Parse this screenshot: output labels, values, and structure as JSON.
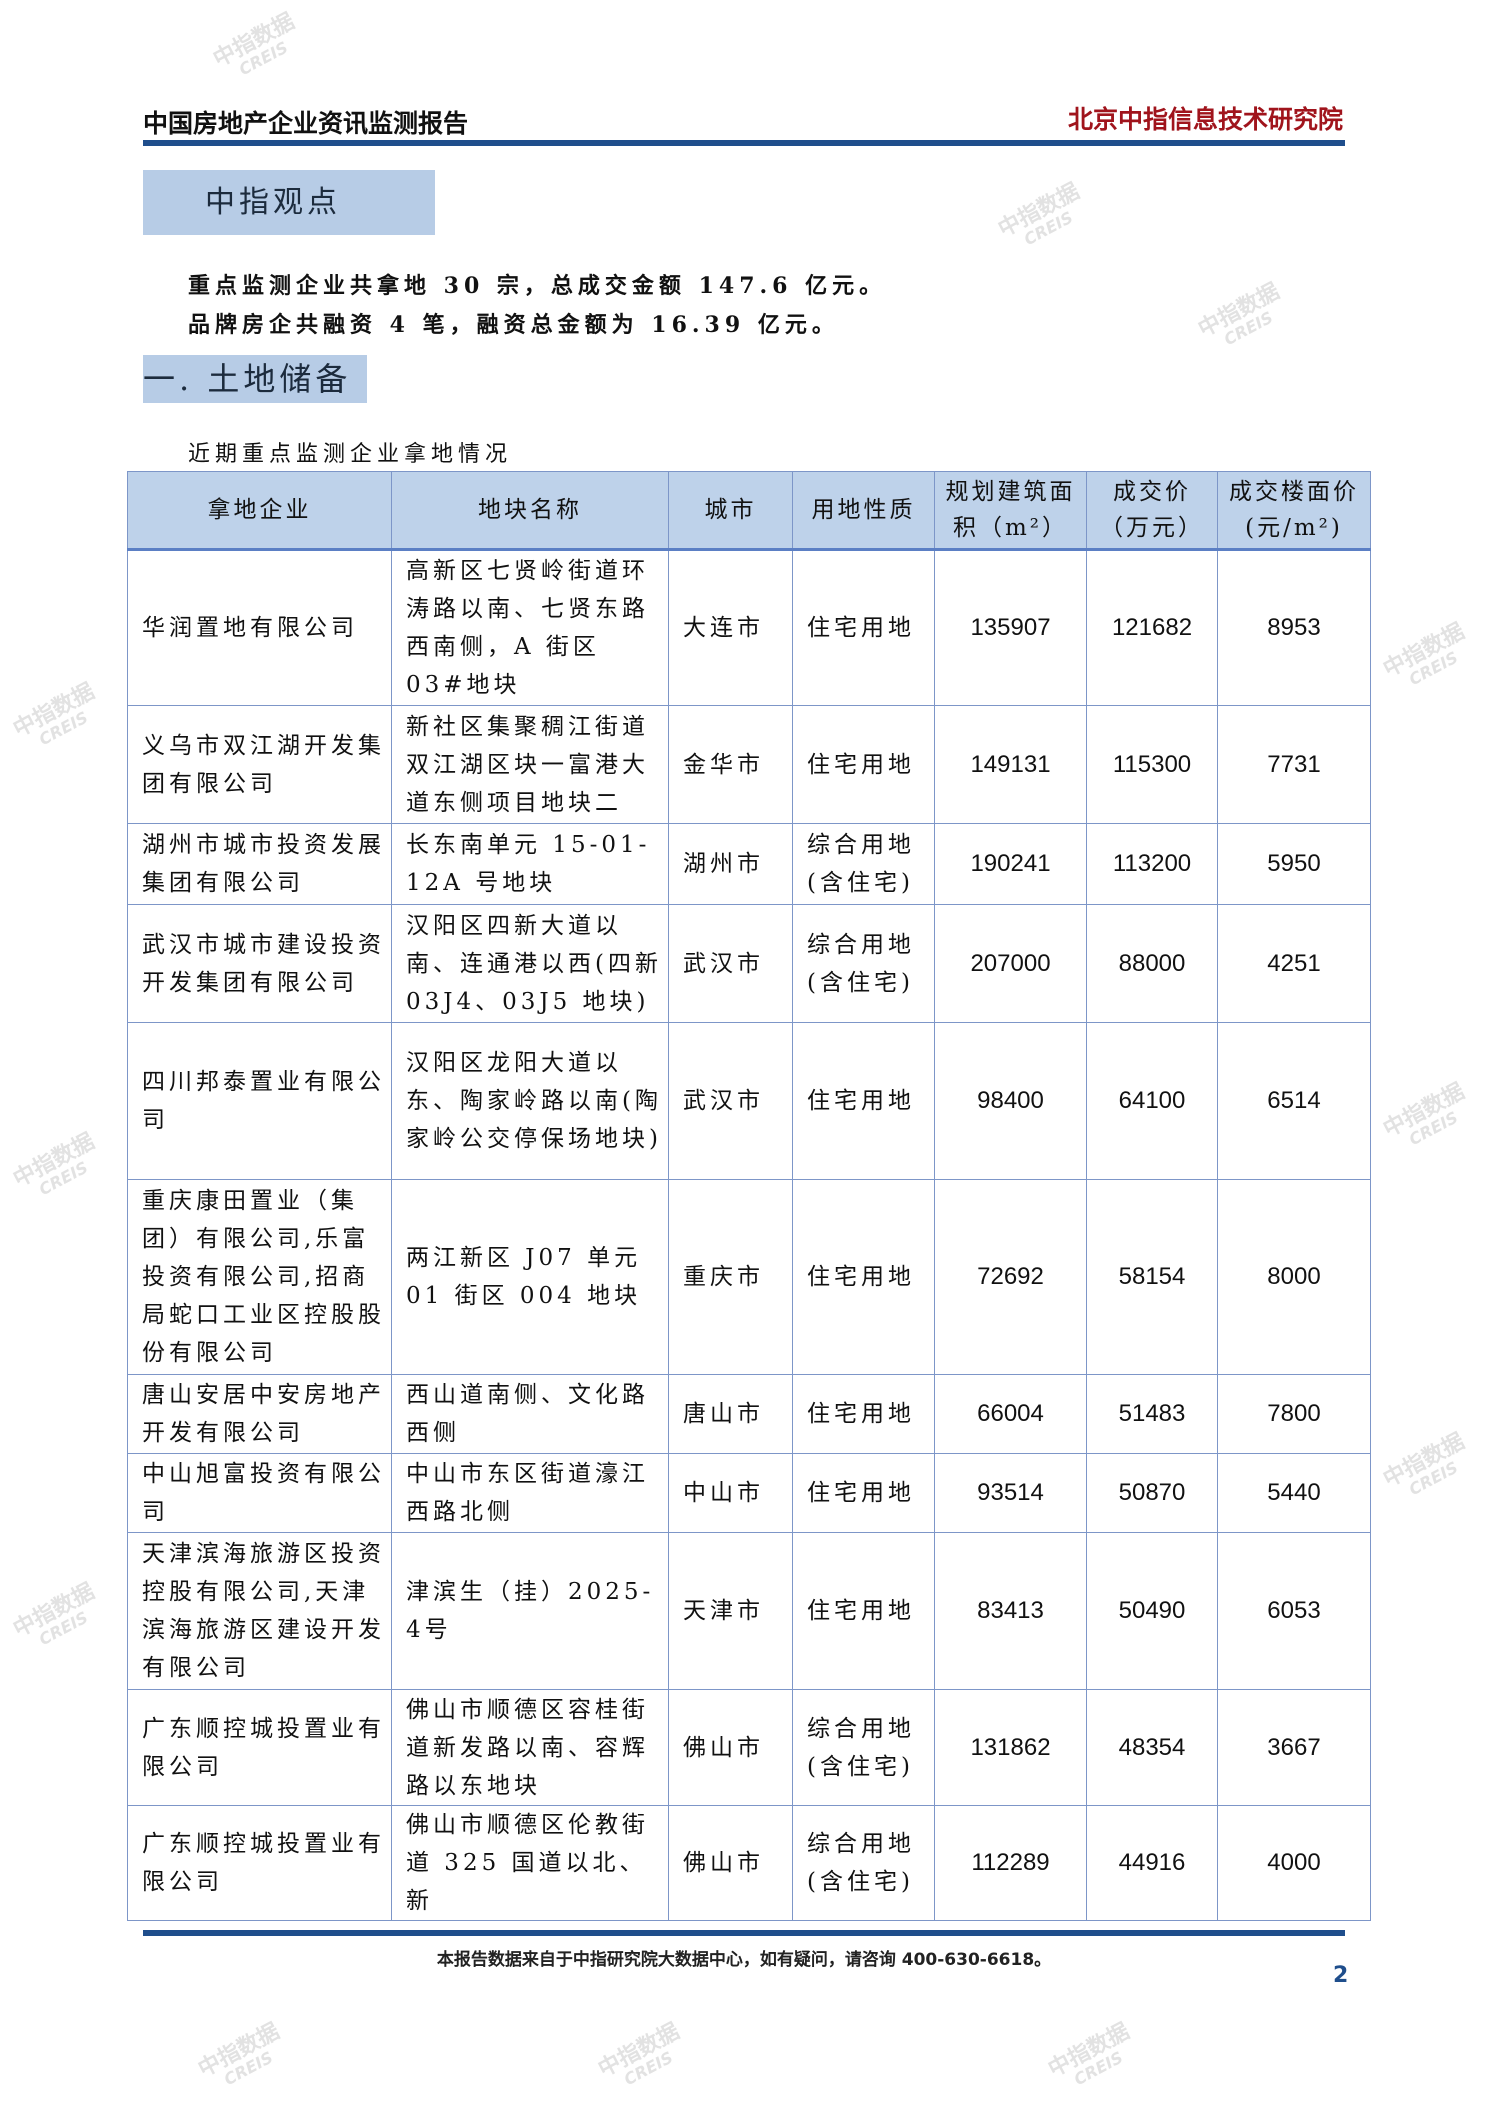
{
  "header": {
    "report_title": "中国房地产企业资讯监测报告",
    "institute": "北京中指信息技术研究院"
  },
  "colors": {
    "accent": "#1f4e8c",
    "institute_red": "#a0141c",
    "box_bg": "#b7cce6",
    "table_header_bg": "#bed2ea",
    "table_border": "#7d96c8"
  },
  "viewpoint": {
    "title": "中指观点",
    "lines": [
      "重点监测企业共拿地 30 宗，总成交金额 147.6 亿元。",
      "品牌房企共融资 4 笔，融资总金额为 16.39 亿元。"
    ]
  },
  "section": {
    "title": "一. 土地储备",
    "table_caption": "近期重点监测企业拿地情况"
  },
  "table": {
    "headers": [
      "拿地企业",
      "地块名称",
      "城市",
      "用地性质",
      "规划建筑面积（m²）",
      "成交价（万元）",
      "成交楼面价(元/m²)"
    ],
    "rows": [
      [
        "华润置地有限公司",
        "高新区七贤岭街道环涛路以南、七贤东路西南侧，A 街区 03#地块",
        "大连市",
        "住宅用地",
        "135907",
        "121682",
        "8953"
      ],
      [
        "义乌市双江湖开发集团有限公司",
        "新社区集聚稠江街道双江湖区块一富港大道东侧项目地块二",
        "金华市",
        "住宅用地",
        "149131",
        "115300",
        "7731"
      ],
      [
        "湖州市城市投资发展集团有限公司",
        "长东南单元 15-01-12A 号地块",
        "湖州市",
        "综合用地(含住宅)",
        "190241",
        "113200",
        "5950"
      ],
      [
        "武汉市城市建设投资开发集团有限公司",
        "汉阳区四新大道以南、连通港以西(四新 03J4、03J5 地块)",
        "武汉市",
        "综合用地(含住宅)",
        "207000",
        "88000",
        "4251"
      ],
      [
        "四川邦泰置业有限公司",
        "汉阳区龙阳大道以东、陶家岭路以南(陶家岭公交停保场地块)",
        "武汉市",
        "住宅用地",
        "98400",
        "64100",
        "6514"
      ],
      [
        "重庆康田置业（集团）有限公司,乐富投资有限公司,招商局蛇口工业区控股股份有限公司",
        "两江新区 J07 单元 01 街区 004 地块",
        "重庆市",
        "住宅用地",
        "72692",
        "58154",
        "8000"
      ],
      [
        "唐山安居中安房地产开发有限公司",
        "西山道南侧、文化路西侧",
        "唐山市",
        "住宅用地",
        "66004",
        "51483",
        "7800"
      ],
      [
        "中山旭富投资有限公司",
        "中山市东区街道濠江西路北侧",
        "中山市",
        "住宅用地",
        "93514",
        "50870",
        "5440"
      ],
      [
        "天津滨海旅游区投资控股有限公司,天津滨海旅游区建设开发有限公司",
        "津滨生（挂）2025-4号",
        "天津市",
        "住宅用地",
        "83413",
        "50490",
        "6053"
      ],
      [
        "广东顺控城投置业有限公司",
        "佛山市顺德区容桂街道新发路以南、容辉路以东地块",
        "佛山市",
        "综合用地(含住宅)",
        "131862",
        "48354",
        "3667"
      ],
      [
        "广东顺控城投置业有限公司",
        "佛山市顺德区伦教街道 325 国道以北、新",
        "佛山市",
        "综合用地(含住宅)",
        "112289",
        "44916",
        "4000"
      ]
    ]
  },
  "footer": {
    "note": "本报告数据来自于中指研究院大数据中心，如有疑问，请咨询 400-630-6618。",
    "page_number": "2"
  },
  "watermark": {
    "text": "中指数据",
    "sub": "CREIS"
  }
}
